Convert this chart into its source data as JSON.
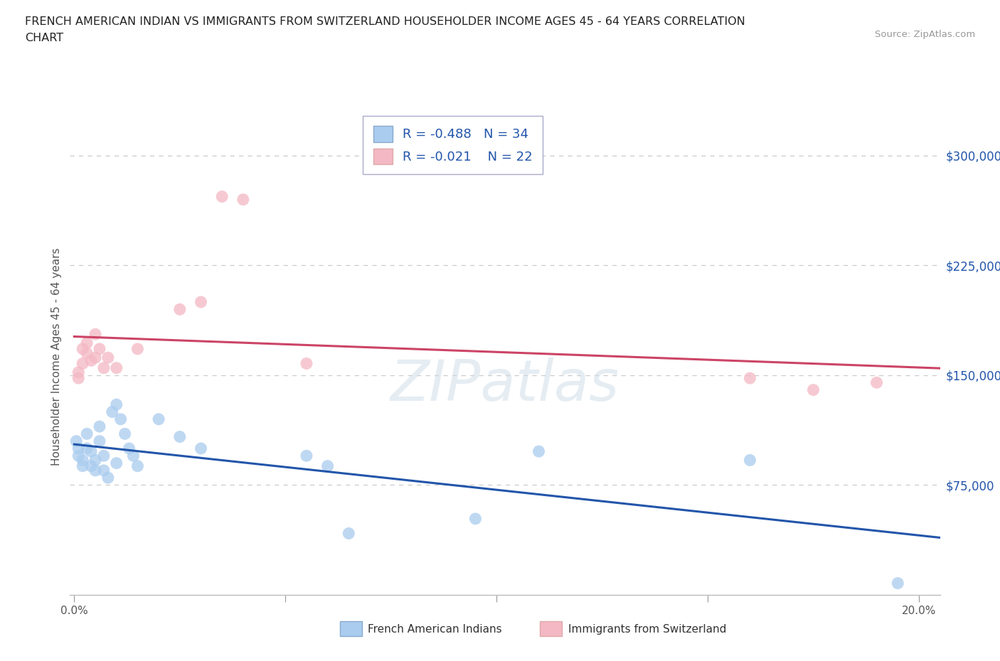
{
  "title_line1": "FRENCH AMERICAN INDIAN VS IMMIGRANTS FROM SWITZERLAND HOUSEHOLDER INCOME AGES 45 - 64 YEARS CORRELATION",
  "title_line2": "CHART",
  "source": "Source: ZipAtlas.com",
  "ylabel": "Householder Income Ages 45 - 64 years",
  "xlim": [
    -0.001,
    0.205
  ],
  "ylim": [
    0,
    325000
  ],
  "yticks": [
    75000,
    150000,
    225000,
    300000
  ],
  "ytick_labels": [
    "$75,000",
    "$150,000",
    "$225,000",
    "$300,000"
  ],
  "xticks": [
    0.0,
    0.05,
    0.1,
    0.15,
    0.2
  ],
  "xtick_labels": [
    "0.0%",
    "",
    "",
    "",
    "20.0%"
  ],
  "grid_color": "#cccccc",
  "background_color": "#ffffff",
  "watermark": "ZIPatlas",
  "blue_scatter_color": "#aaccee",
  "pink_scatter_color": "#f4b8c4",
  "blue_line_color": "#2255aa",
  "pink_line_color": "#cc4466",
  "stat_text_color": "#2255aa",
  "R_blue": -0.488,
  "N_blue": 34,
  "R_pink": -0.021,
  "N_pink": 22,
  "legend_label_blue": "French American Indians",
  "legend_label_pink": "Immigrants from Switzerland",
  "blue_x": [
    0.0005,
    0.001,
    0.001,
    0.002,
    0.002,
    0.003,
    0.003,
    0.004,
    0.004,
    0.005,
    0.005,
    0.006,
    0.006,
    0.007,
    0.007,
    0.008,
    0.009,
    0.01,
    0.01,
    0.011,
    0.012,
    0.013,
    0.014,
    0.015,
    0.02,
    0.025,
    0.03,
    0.055,
    0.06,
    0.065,
    0.095,
    0.11,
    0.16,
    0.195
  ],
  "blue_y": [
    105000,
    100000,
    95000,
    92000,
    88000,
    110000,
    100000,
    98000,
    88000,
    92000,
    85000,
    115000,
    105000,
    95000,
    85000,
    80000,
    125000,
    130000,
    90000,
    120000,
    110000,
    100000,
    95000,
    88000,
    120000,
    108000,
    100000,
    95000,
    88000,
    42000,
    52000,
    98000,
    92000,
    8000
  ],
  "pink_x": [
    0.001,
    0.001,
    0.002,
    0.002,
    0.003,
    0.003,
    0.004,
    0.005,
    0.005,
    0.006,
    0.007,
    0.008,
    0.01,
    0.015,
    0.025,
    0.03,
    0.035,
    0.04,
    0.055,
    0.16,
    0.175,
    0.19
  ],
  "pink_y": [
    152000,
    148000,
    168000,
    158000,
    172000,
    165000,
    160000,
    178000,
    162000,
    168000,
    155000,
    162000,
    155000,
    168000,
    195000,
    200000,
    272000,
    270000,
    158000,
    148000,
    140000,
    145000
  ]
}
